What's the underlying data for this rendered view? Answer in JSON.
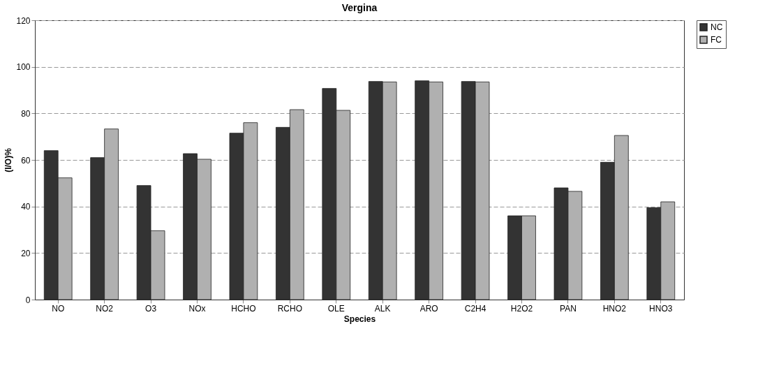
{
  "chart_data": {
    "type": "bar",
    "title": "Vergina",
    "xlabel": "Species",
    "ylabel": "(I/O)%",
    "categories": [
      "NO",
      "NO2",
      "O3",
      "NOx",
      "HCHO",
      "RCHO",
      "OLE",
      "ALK",
      "ARO",
      "C2H4",
      "H2O2",
      "PAN",
      "HNO2",
      "HNO3"
    ],
    "series": [
      {
        "name": "NC",
        "color": "#333333",
        "values": [
          64,
          61,
          49,
          62.7,
          71.5,
          74,
          90.7,
          93.7,
          94,
          93.7,
          36,
          48,
          59,
          39.5
        ]
      },
      {
        "name": "FC",
        "color": "#b0b0b0",
        "values": [
          52.3,
          73.3,
          29.6,
          60.3,
          76,
          81.6,
          81.3,
          93.5,
          93.5,
          93.5,
          36,
          46.5,
          70.5,
          42
        ]
      }
    ],
    "ylim": [
      0,
      120
    ],
    "yticks": [
      0,
      20,
      40,
      60,
      80,
      100,
      120
    ],
    "grid": "y",
    "legend": "right"
  }
}
